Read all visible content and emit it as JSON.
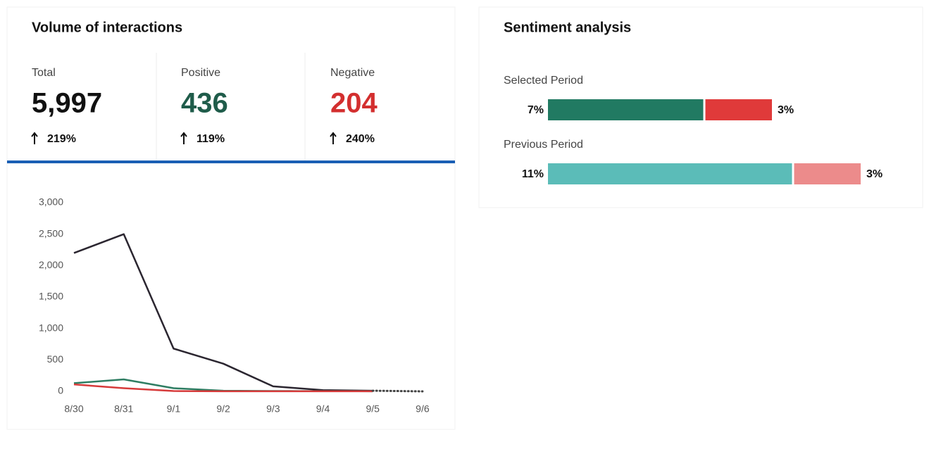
{
  "volume": {
    "title": "Volume of interactions",
    "stats": [
      {
        "label": "Total",
        "value": "5,997",
        "change": "219%",
        "color": "#111111"
      },
      {
        "label": "Positive",
        "value": "436",
        "change": "119%",
        "color": "#1f5c4a"
      },
      {
        "label": "Negative",
        "value": "204",
        "change": "240%",
        "color": "#d32f2f"
      }
    ]
  },
  "chart_data": {
    "type": "line",
    "categories": [
      "8/30",
      "8/31",
      "9/1",
      "9/2",
      "9/3",
      "9/4",
      "9/5",
      "9/6"
    ],
    "series": [
      {
        "color": "#2b2630",
        "values": [
          2200,
          2500,
          680,
          440,
          80,
          20,
          10,
          null
        ]
      },
      {
        "color": "#2e7d62",
        "values": [
          130,
          190,
          50,
          10,
          5,
          3,
          2,
          null
        ]
      },
      {
        "color": "#d63a3a",
        "values": [
          110,
          50,
          5,
          2,
          1,
          1,
          1,
          null
        ]
      },
      {
        "color": "#444444",
        "dash": "dotted",
        "values": [
          null,
          null,
          null,
          null,
          null,
          null,
          10,
          0
        ]
      }
    ],
    "ylim": [
      0,
      3000
    ],
    "yticks": [
      0,
      500,
      {
        "value": 1000,
        "label": "1,000"
      },
      {
        "value": 1500,
        "label": "1,500"
      },
      {
        "value": 2000,
        "label": "2,000"
      },
      {
        "value": 2500,
        "label": "2,500"
      },
      {
        "value": 3000,
        "label": "3,000"
      }
    ],
    "grid": false
  },
  "sentiment": {
    "title": "Sentiment analysis",
    "periods": [
      {
        "label": "Selected Period",
        "values": [
          7,
          3
        ],
        "value_labels": [
          "7%",
          "3%"
        ],
        "colors": [
          "#217a62",
          "#e03a3a"
        ]
      },
      {
        "label": "Previous Period",
        "values": [
          11,
          3
        ],
        "value_labels": [
          "11%",
          "3%"
        ],
        "colors": [
          "#5bbcb8",
          "#ec8b8b"
        ]
      }
    ]
  }
}
